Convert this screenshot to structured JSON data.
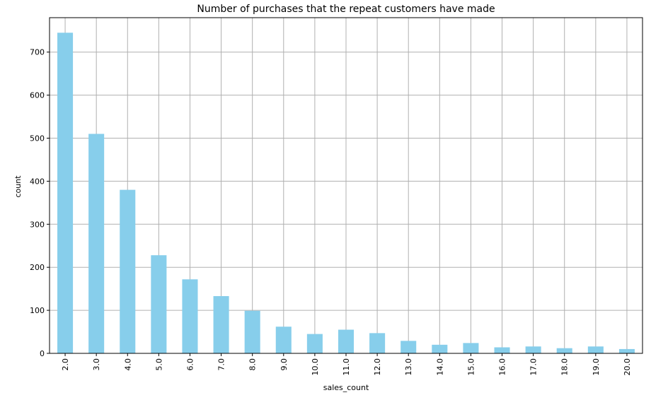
{
  "chart_data": {
    "type": "bar",
    "title": "Number of purchases that the repeat customers have made",
    "xlabel": "sales_count",
    "ylabel": "count",
    "categories": [
      "2.0",
      "3.0",
      "4.0",
      "5.0",
      "6.0",
      "7.0",
      "8.0",
      "9.0",
      "10.0",
      "11.0",
      "12.0",
      "13.0",
      "14.0",
      "15.0",
      "16.0",
      "17.0",
      "18.0",
      "19.0",
      "20.0"
    ],
    "values": [
      745,
      510,
      380,
      228,
      172,
      133,
      99,
      62,
      45,
      55,
      47,
      29,
      20,
      24,
      14,
      16,
      12,
      16,
      10
    ],
    "ylim": [
      0,
      780
    ],
    "yticks": [
      0,
      100,
      200,
      300,
      400,
      500,
      600,
      700
    ],
    "grid": true,
    "bar_color": "#87ceeb",
    "grid_color": "#b0b0b0",
    "legend": "none"
  }
}
